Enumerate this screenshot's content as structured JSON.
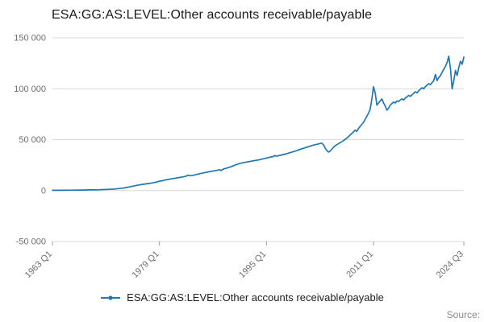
{
  "title": "ESA:GG:AS:LEVEL:Other accounts receivable/payable",
  "legend": {
    "label": "ESA:GG:AS:LEVEL:Other accounts receivable/payable"
  },
  "source_label": "Source:",
  "colors": {
    "line": "#1f77b4",
    "grid": "#d9d9d9",
    "tick": "#9a9a9a",
    "axis_text": "#6e6e6e"
  },
  "chart_data": {
    "type": "line",
    "title": "ESA:GG:AS:LEVEL:Other accounts receivable/payable",
    "xlabel": "",
    "ylabel": "",
    "xlim": [
      1963,
      2024.5
    ],
    "ylim": [
      -50000,
      150000
    ],
    "grid": "horizontal",
    "legend_position": "bottom",
    "x_ticks": [
      {
        "x": 1963.0,
        "label": "1963 Q1"
      },
      {
        "x": 1979.0,
        "label": "1979 Q1"
      },
      {
        "x": 1995.0,
        "label": "1995 Q1"
      },
      {
        "x": 2011.0,
        "label": "2011 Q1"
      },
      {
        "x": 2024.5,
        "label": "2024 Q3"
      }
    ],
    "y_ticks": [
      {
        "v": -50000,
        "label": "-50 000"
      },
      {
        "v": 0,
        "label": "0"
      },
      {
        "v": 50000,
        "label": "50 000"
      },
      {
        "v": 100000,
        "label": "100 000"
      },
      {
        "v": 150000,
        "label": "150 000"
      }
    ],
    "series": [
      {
        "name": "ESA:GG:AS:LEVEL:Other accounts receivable/payable",
        "points": [
          [
            1963.0,
            300
          ],
          [
            1963.5,
            250
          ],
          [
            1964.0,
            350
          ],
          [
            1964.5,
            300
          ],
          [
            1965.0,
            400
          ],
          [
            1965.5,
            380
          ],
          [
            1966.0,
            450
          ],
          [
            1966.5,
            420
          ],
          [
            1967.0,
            500
          ],
          [
            1967.5,
            550
          ],
          [
            1968.0,
            600
          ],
          [
            1968.5,
            650
          ],
          [
            1969.0,
            700
          ],
          [
            1969.5,
            750
          ],
          [
            1970.0,
            850
          ],
          [
            1970.5,
            950
          ],
          [
            1971.0,
            1100
          ],
          [
            1971.5,
            1200
          ],
          [
            1972.0,
            1400
          ],
          [
            1972.5,
            1600
          ],
          [
            1973.0,
            2000
          ],
          [
            1973.5,
            2400
          ],
          [
            1974.0,
            3000
          ],
          [
            1974.5,
            3600
          ],
          [
            1975.0,
            4300
          ],
          [
            1975.5,
            5000
          ],
          [
            1976.0,
            5600
          ],
          [
            1976.5,
            6100
          ],
          [
            1977.0,
            6600
          ],
          [
            1977.5,
            7000
          ],
          [
            1978.0,
            7600
          ],
          [
            1978.5,
            8300
          ],
          [
            1979.0,
            9200
          ],
          [
            1979.5,
            9800
          ],
          [
            1980.0,
            10600
          ],
          [
            1980.5,
            11200
          ],
          [
            1981.0,
            11800
          ],
          [
            1981.5,
            12300
          ],
          [
            1982.0,
            12900
          ],
          [
            1982.5,
            13400
          ],
          [
            1983.0,
            14200
          ],
          [
            1983.25,
            15200
          ],
          [
            1983.5,
            14600
          ],
          [
            1984.0,
            15000
          ],
          [
            1984.5,
            15800
          ],
          [
            1985.0,
            16600
          ],
          [
            1985.5,
            17300
          ],
          [
            1986.0,
            18000
          ],
          [
            1986.5,
            18600
          ],
          [
            1987.0,
            19200
          ],
          [
            1987.5,
            19800
          ],
          [
            1988.0,
            20400
          ],
          [
            1988.25,
            19700
          ],
          [
            1988.5,
            21000
          ],
          [
            1989.0,
            22000
          ],
          [
            1989.5,
            23000
          ],
          [
            1990.0,
            24200
          ],
          [
            1990.5,
            25500
          ],
          [
            1991.0,
            26600
          ],
          [
            1991.5,
            27400
          ],
          [
            1992.0,
            28000
          ],
          [
            1992.5,
            28600
          ],
          [
            1993.0,
            29200
          ],
          [
            1993.5,
            29800
          ],
          [
            1994.0,
            30400
          ],
          [
            1994.5,
            31200
          ],
          [
            1995.0,
            32000
          ],
          [
            1995.5,
            32800
          ],
          [
            1996.0,
            33400
          ],
          [
            1996.25,
            34500
          ],
          [
            1996.5,
            33800
          ],
          [
            1997.0,
            34600
          ],
          [
            1997.5,
            35400
          ],
          [
            1998.0,
            36200
          ],
          [
            1998.5,
            37200
          ],
          [
            1999.0,
            38200
          ],
          [
            1999.5,
            39200
          ],
          [
            2000.0,
            40400
          ],
          [
            2000.5,
            41500
          ],
          [
            2001.0,
            42600
          ],
          [
            2001.5,
            43600
          ],
          [
            2002.0,
            44600
          ],
          [
            2002.5,
            45400
          ],
          [
            2003.0,
            46200
          ],
          [
            2003.25,
            46600
          ],
          [
            2003.5,
            45000
          ],
          [
            2003.75,
            42000
          ],
          [
            2004.0,
            39500
          ],
          [
            2004.25,
            37800
          ],
          [
            2004.5,
            38500
          ],
          [
            2004.75,
            40500
          ],
          [
            2005.0,
            42500
          ],
          [
            2005.25,
            44000
          ],
          [
            2005.5,
            45000
          ],
          [
            2006.0,
            47000
          ],
          [
            2006.5,
            49000
          ],
          [
            2007.0,
            51500
          ],
          [
            2007.25,
            53000
          ],
          [
            2007.5,
            54500
          ],
          [
            2007.75,
            56000
          ],
          [
            2008.0,
            57500
          ],
          [
            2008.25,
            59500
          ],
          [
            2008.5,
            58000
          ],
          [
            2008.75,
            61000
          ],
          [
            2009.0,
            63000
          ],
          [
            2009.25,
            65000
          ],
          [
            2009.5,
            67000
          ],
          [
            2009.75,
            70000
          ],
          [
            2010.0,
            73000
          ],
          [
            2010.25,
            76000
          ],
          [
            2010.5,
            80000
          ],
          [
            2010.75,
            90000
          ],
          [
            2011.0,
            102000
          ],
          [
            2011.25,
            96000
          ],
          [
            2011.5,
            84000
          ],
          [
            2011.75,
            86000
          ],
          [
            2012.0,
            88000
          ],
          [
            2012.25,
            90000
          ],
          [
            2012.5,
            86000
          ],
          [
            2012.75,
            83000
          ],
          [
            2013.0,
            79000
          ],
          [
            2013.25,
            81000
          ],
          [
            2013.5,
            84000
          ],
          [
            2013.75,
            85500
          ],
          [
            2014.0,
            87000
          ],
          [
            2014.25,
            86000
          ],
          [
            2014.5,
            88000
          ],
          [
            2014.75,
            87500
          ],
          [
            2015.0,
            89000
          ],
          [
            2015.25,
            90000
          ],
          [
            2015.5,
            89000
          ],
          [
            2015.75,
            91000
          ],
          [
            2016.0,
            92000
          ],
          [
            2016.25,
            93500
          ],
          [
            2016.5,
            92500
          ],
          [
            2016.75,
            94000
          ],
          [
            2017.0,
            95500
          ],
          [
            2017.25,
            97000
          ],
          [
            2017.5,
            96000
          ],
          [
            2017.75,
            98000
          ],
          [
            2018.0,
            99500
          ],
          [
            2018.25,
            101000
          ],
          [
            2018.5,
            100000
          ],
          [
            2018.75,
            102000
          ],
          [
            2019.0,
            103500
          ],
          [
            2019.25,
            105000
          ],
          [
            2019.5,
            104000
          ],
          [
            2019.75,
            106000
          ],
          [
            2020.0,
            108000
          ],
          [
            2020.25,
            114000
          ],
          [
            2020.5,
            108000
          ],
          [
            2020.75,
            111000
          ],
          [
            2021.0,
            113000
          ],
          [
            2021.25,
            116000
          ],
          [
            2021.5,
            119000
          ],
          [
            2021.75,
            122000
          ],
          [
            2022.0,
            126000
          ],
          [
            2022.25,
            132000
          ],
          [
            2022.5,
            120000
          ],
          [
            2022.75,
            100000
          ],
          [
            2023.0,
            108000
          ],
          [
            2023.25,
            118000
          ],
          [
            2023.5,
            113000
          ],
          [
            2023.75,
            121000
          ],
          [
            2024.0,
            127000
          ],
          [
            2024.25,
            124000
          ],
          [
            2024.5,
            131000
          ]
        ]
      }
    ]
  }
}
